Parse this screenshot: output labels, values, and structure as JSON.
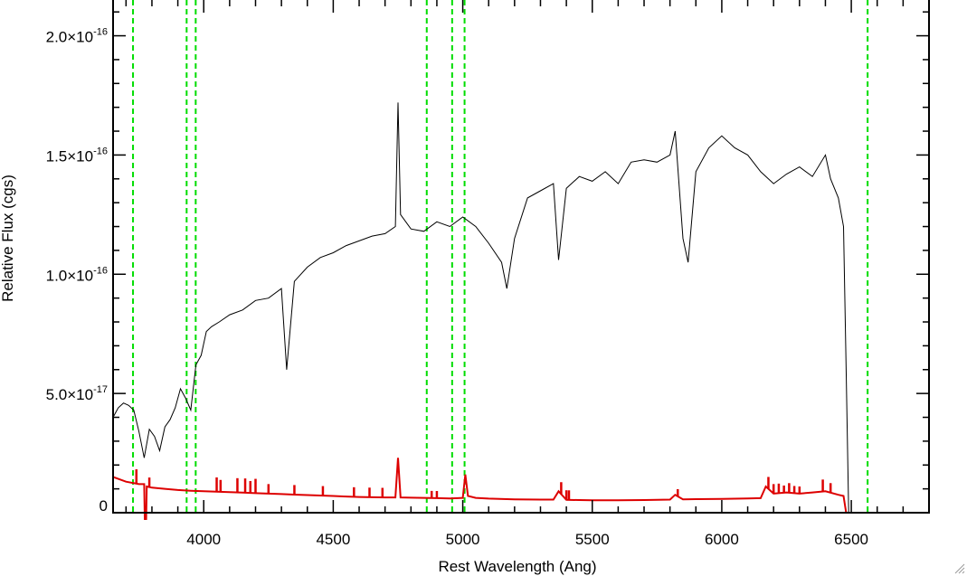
{
  "chart_data": {
    "type": "line",
    "title": "",
    "xlabel": "Rest Wavelength (Ang)",
    "ylabel": "Relative Flux (cgs)",
    "xlim": [
      3650,
      6800
    ],
    "ylim": [
      0,
      2.15e-16
    ],
    "x_ticks": [
      {
        "value": 4000,
        "label": "4000"
      },
      {
        "value": 4500,
        "label": "4500"
      },
      {
        "value": 5000,
        "label": "5000"
      },
      {
        "value": 5500,
        "label": "5500"
      },
      {
        "value": 6000,
        "label": "6000"
      },
      {
        "value": 6500,
        "label": "6500"
      }
    ],
    "y_ticks": [
      {
        "value": 0,
        "mantissa": "0",
        "exponent": ""
      },
      {
        "value": 5e-17,
        "mantissa": "5.0×10",
        "exponent": "-17"
      },
      {
        "value": 1e-16,
        "mantissa": "1.0×10",
        "exponent": "-16"
      },
      {
        "value": 1.5e-16,
        "mantissa": "1.5×10",
        "exponent": "-16"
      },
      {
        "value": 2e-16,
        "mantissa": "2.0×10",
        "exponent": "-16"
      }
    ],
    "x_minor_step": 100,
    "y_minor_step": 1e-17,
    "grid": false,
    "reference_lines": {
      "color": "#00dd00",
      "style": "dashed",
      "x": [
        3727,
        3934,
        3969,
        4861,
        4959,
        5007,
        6563
      ]
    },
    "series": [
      {
        "color": "#000000",
        "x": [
          3650,
          3670,
          3690,
          3710,
          3730,
          3750,
          3770,
          3790,
          3810,
          3830,
          3850,
          3870,
          3890,
          3910,
          3930,
          3950,
          3970,
          3990,
          4010,
          4030,
          4060,
          4100,
          4150,
          4200,
          4250,
          4300,
          4320,
          4350,
          4400,
          4450,
          4500,
          4550,
          4600,
          4650,
          4700,
          4740,
          4750,
          4760,
          4800,
          4850,
          4900,
          4950,
          5000,
          5050,
          5100,
          5150,
          5170,
          5200,
          5250,
          5300,
          5350,
          5370,
          5400,
          5450,
          5500,
          5550,
          5600,
          5650,
          5700,
          5750,
          5800,
          5820,
          5850,
          5870,
          5900,
          5950,
          6000,
          6050,
          6100,
          6150,
          6200,
          6250,
          6300,
          6350,
          6400,
          6420,
          6450,
          6470,
          6480,
          6490,
          6500,
          6600,
          6700,
          6800
        ],
        "y": [
          4e-17,
          4.4e-17,
          4.6e-17,
          4.5e-17,
          4.3e-17,
          3.4e-17,
          2.3e-17,
          3.5e-17,
          3.2e-17,
          2.6e-17,
          3.6e-17,
          3.9e-17,
          4.4e-17,
          5.2e-17,
          4.8e-17,
          4.3e-17,
          6.2e-17,
          6.6e-17,
          7.6e-17,
          7.8e-17,
          8e-17,
          8.3e-17,
          8.5e-17,
          8.9e-17,
          9e-17,
          9.4e-17,
          6e-17,
          9.7e-17,
          1.03e-16,
          1.07e-16,
          1.09e-16,
          1.12e-16,
          1.14e-16,
          1.16e-16,
          1.17e-16,
          1.2e-16,
          1.72e-16,
          1.25e-16,
          1.19e-16,
          1.18e-16,
          1.22e-16,
          1.2e-16,
          1.24e-16,
          1.2e-16,
          1.13e-16,
          1.05e-16,
          9.4e-17,
          1.15e-16,
          1.32e-16,
          1.35e-16,
          1.38e-16,
          1.06e-16,
          1.36e-16,
          1.41e-16,
          1.39e-16,
          1.43e-16,
          1.38e-16,
          1.47e-16,
          1.48e-16,
          1.47e-16,
          1.5e-16,
          1.6e-16,
          1.15e-16,
          1.05e-16,
          1.43e-16,
          1.53e-16,
          1.58e-16,
          1.53e-16,
          1.5e-16,
          1.43e-16,
          1.38e-16,
          1.42e-16,
          1.45e-16,
          1.41e-16,
          1.5e-16,
          1.4e-16,
          1.32e-16,
          1.2e-16,
          6e-17,
          0,
          0,
          0,
          0,
          0
        ]
      },
      {
        "color": "#dd0000",
        "x": [
          3650,
          3700,
          3750,
          3770,
          3775,
          3780,
          3800,
          3850,
          3900,
          3950,
          4000,
          4050,
          4100,
          4150,
          4200,
          4250,
          4300,
          4350,
          4400,
          4450,
          4500,
          4550,
          4600,
          4650,
          4700,
          4740,
          4750,
          4760,
          4800,
          4850,
          4900,
          4950,
          5000,
          5010,
          5020,
          5050,
          5100,
          5200,
          5300,
          5350,
          5370,
          5400,
          5450,
          5500,
          5600,
          5700,
          5800,
          5820,
          5850,
          5900,
          6000,
          6100,
          6150,
          6170,
          6200,
          6250,
          6300,
          6350,
          6400,
          6450,
          6470,
          6480,
          6500,
          6600,
          6700,
          6800
        ],
        "y": [
          1.5e-17,
          1.3e-17,
          1.2e-17,
          1.2e-17,
          -2e-17,
          1.1e-17,
          1.05e-17,
          1e-17,
          9.5e-18,
          9.2e-18,
          9e-18,
          8.8e-18,
          8.6e-18,
          8.4e-18,
          8.2e-18,
          8e-18,
          7.8e-18,
          7.6e-18,
          7.4e-18,
          7.2e-18,
          7e-18,
          6.8e-18,
          6.6e-18,
          6.5e-18,
          6.4e-18,
          6.4e-18,
          2.3e-17,
          6.4e-18,
          6.3e-18,
          6.2e-18,
          6.1e-18,
          6e-18,
          6.2e-18,
          1.6e-17,
          7e-18,
          6.2e-18,
          5.9e-18,
          5.6e-18,
          5.5e-18,
          5.5e-18,
          9e-18,
          5.4e-18,
          5.3e-18,
          5.2e-18,
          5.2e-18,
          5.3e-18,
          5.5e-18,
          7.5e-18,
          5.6e-18,
          5.7e-18,
          5.8e-18,
          6e-18,
          6.1e-18,
          1.1e-17,
          8e-18,
          8.5e-18,
          8e-18,
          8.5e-18,
          9e-18,
          7.5e-18,
          7e-18,
          0,
          0,
          0,
          0,
          0
        ]
      }
    ],
    "spikes": {
      "color": "#dd0000",
      "baseline": "red_series",
      "x": [
        3740,
        3790,
        4050,
        4065,
        4130,
        4160,
        4180,
        4200,
        4250,
        4350,
        4460,
        4580,
        4640,
        4690,
        4880,
        4900,
        5380,
        5400,
        5410,
        5830,
        6180,
        6200,
        6220,
        6240,
        6260,
        6280,
        6300,
        6390,
        6420
      ],
      "height": [
        6e-18,
        4e-18,
        6e-18,
        5e-18,
        6e-18,
        6e-18,
        5e-18,
        6e-18,
        4e-18,
        4e-18,
        4e-18,
        4e-18,
        4e-18,
        4e-18,
        3e-18,
        3e-18,
        5e-18,
        4e-18,
        4e-18,
        3e-18,
        5e-18,
        4e-18,
        4e-18,
        3e-18,
        4e-18,
        3e-18,
        3e-18,
        5e-18,
        4e-18
      ]
    }
  }
}
